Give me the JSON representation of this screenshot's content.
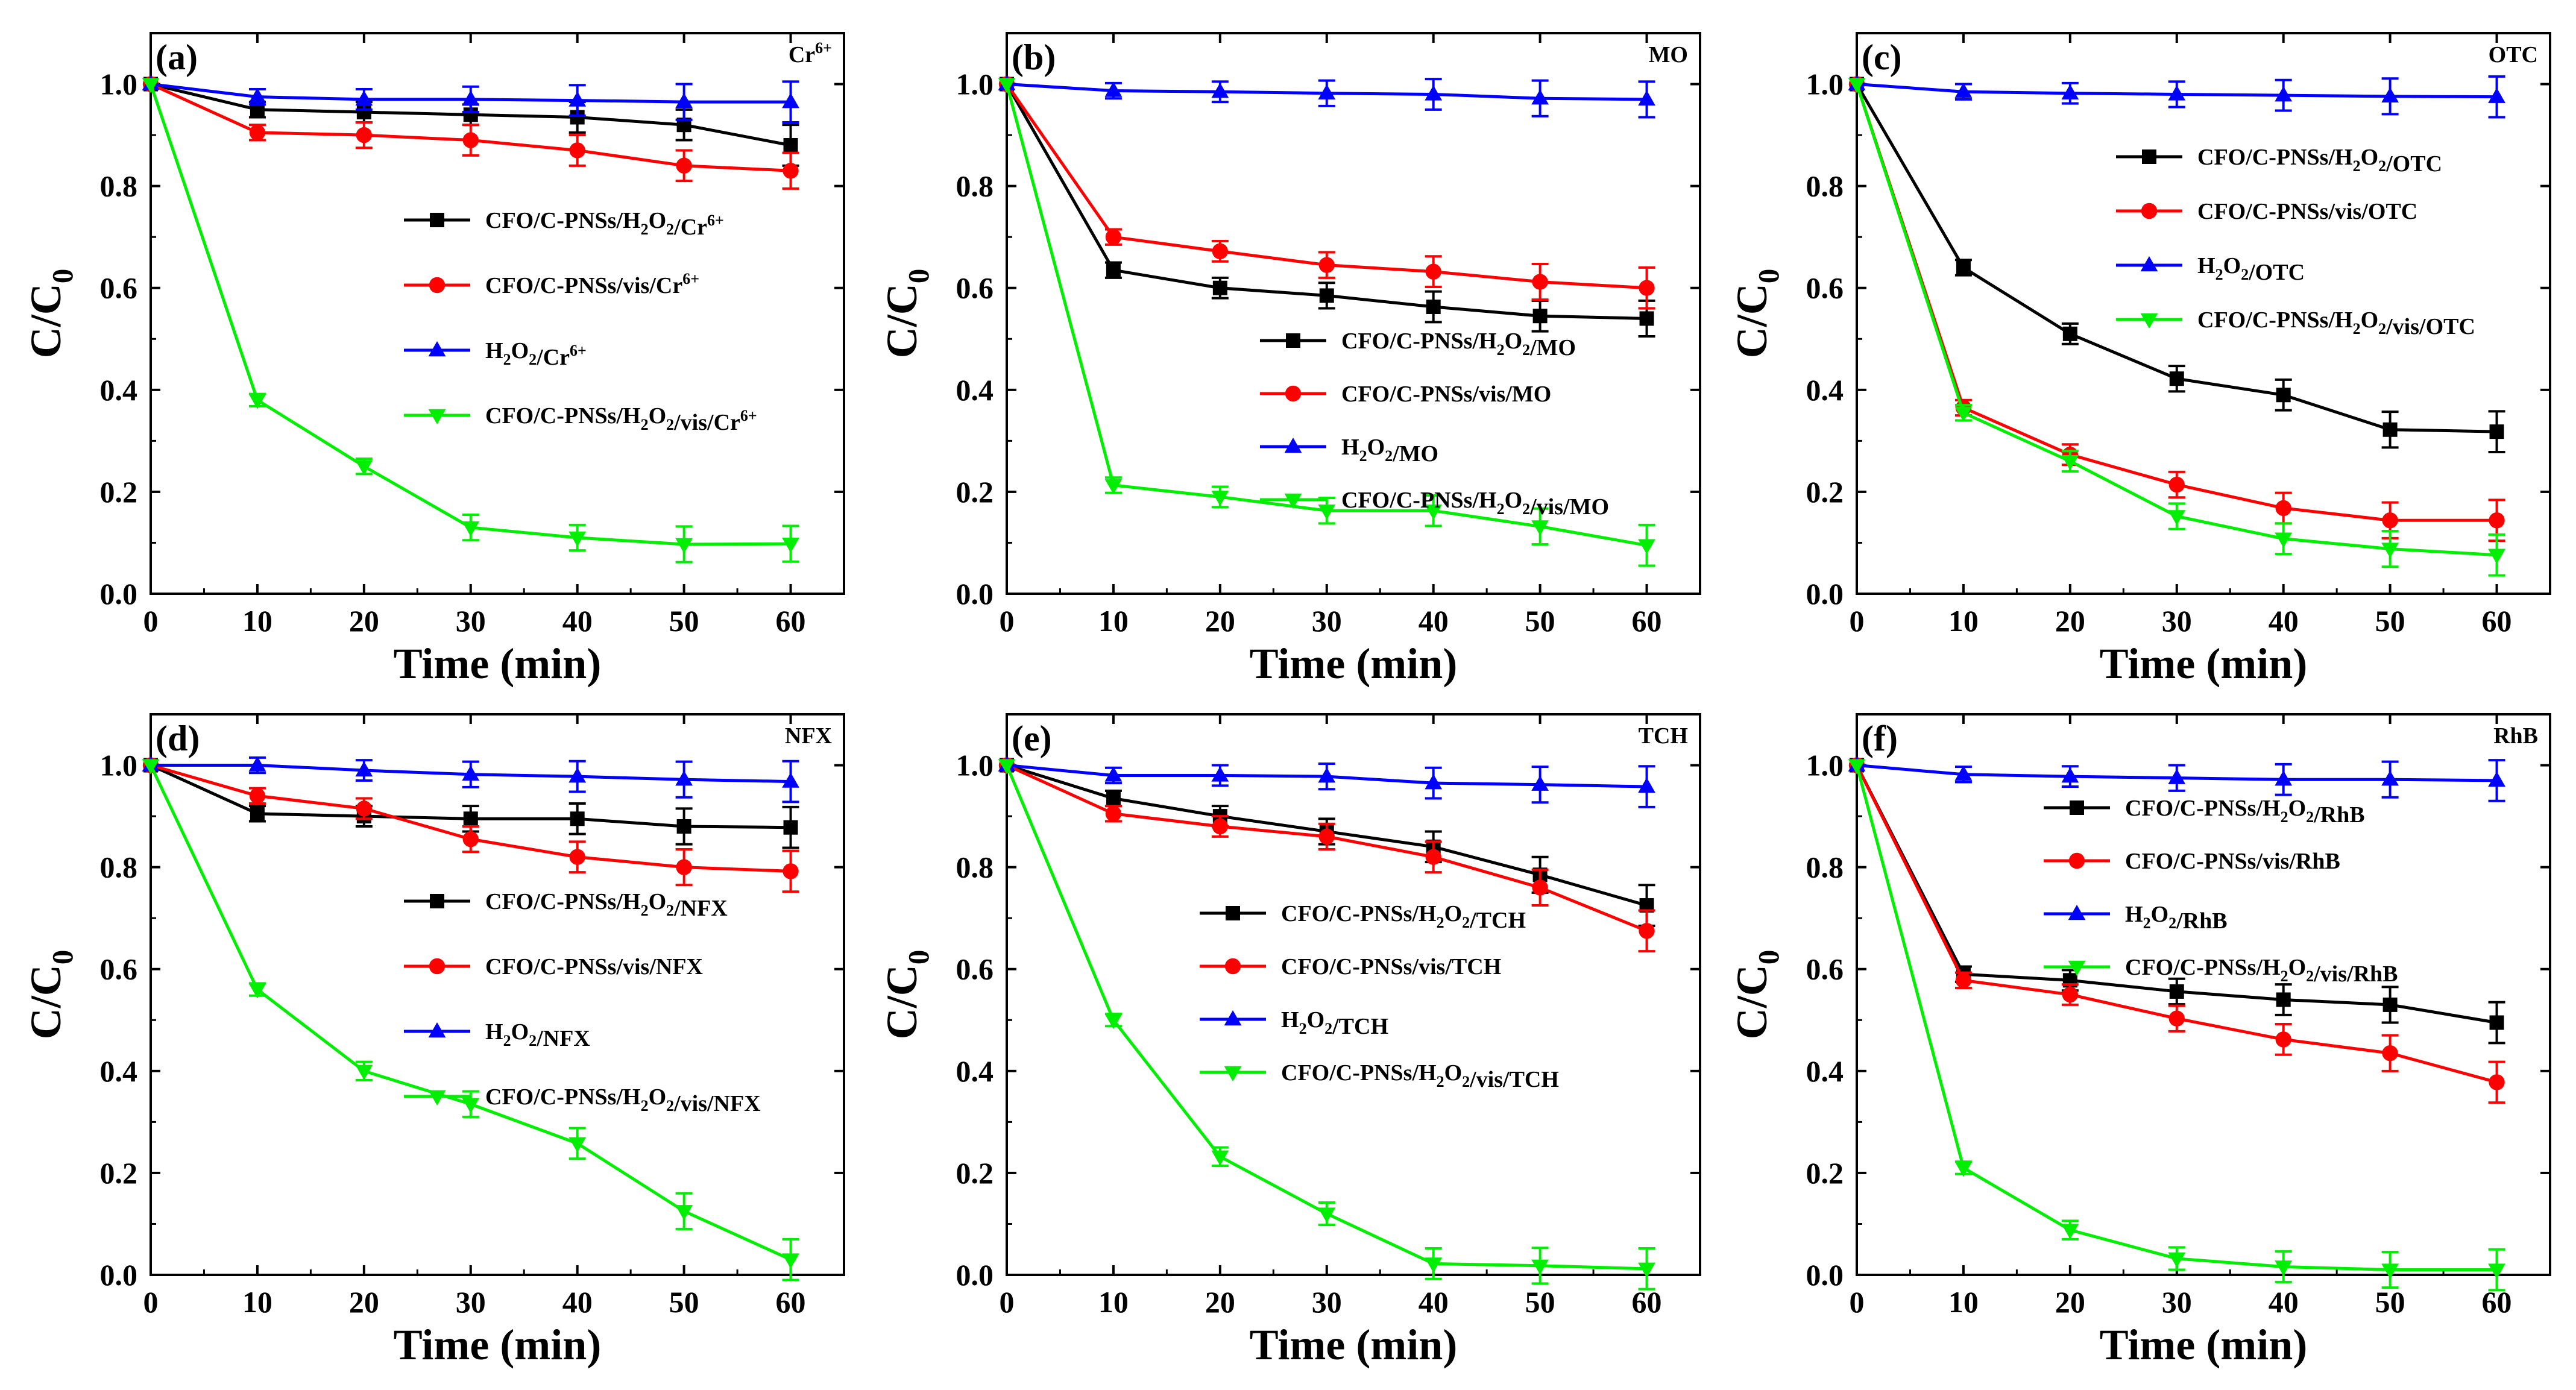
{
  "chart_data": [
    {
      "type": "line",
      "panel_label": "(a)",
      "pollutant": "Cr6+",
      "xlabel": "Time (min)",
      "ylabel": "C/C0",
      "xlim": [
        0,
        65
      ],
      "ylim": [
        0,
        1.1
      ],
      "xticks": [
        "0",
        "10",
        "20",
        "30",
        "40",
        "50",
        "60"
      ],
      "yticks": [
        "0.0",
        "0.2",
        "0.4",
        "0.6",
        "0.8",
        "1.0"
      ],
      "x": [
        0,
        10,
        20,
        30,
        40,
        50,
        60
      ],
      "legend_position": "middle-right",
      "series": [
        {
          "name": "CFO/C-PNSs/H2O2/Cr6+",
          "color": "#000000",
          "marker": "square",
          "values": [
            1.0,
            0.95,
            0.945,
            0.94,
            0.935,
            0.92,
            0.88
          ],
          "errors": [
            0,
            0.015,
            0.02,
            0.02,
            0.03,
            0.03,
            0.04
          ]
        },
        {
          "name": "CFO/C-PNSs/vis/Cr6+",
          "color": "#ff0000",
          "marker": "circle",
          "values": [
            1.0,
            0.905,
            0.9,
            0.89,
            0.87,
            0.84,
            0.83
          ],
          "errors": [
            0,
            0.015,
            0.025,
            0.03,
            0.03,
            0.03,
            0.035
          ]
        },
        {
          "name": "H2O2/Cr6+",
          "color": "#0000ff",
          "marker": "triangle-up",
          "values": [
            1.0,
            0.975,
            0.97,
            0.97,
            0.968,
            0.965,
            0.965
          ],
          "errors": [
            0,
            0.015,
            0.02,
            0.025,
            0.03,
            0.035,
            0.04
          ]
        },
        {
          "name": "CFO/C-PNSs/H2O2/vis/Cr6+",
          "color": "#00ee00",
          "marker": "triangle-down",
          "values": [
            1.0,
            0.38,
            0.25,
            0.13,
            0.11,
            0.097,
            0.098
          ],
          "errors": [
            0,
            0.012,
            0.015,
            0.025,
            0.025,
            0.035,
            0.035
          ]
        }
      ]
    },
    {
      "type": "line",
      "panel_label": "(b)",
      "pollutant": "MO",
      "xlabel": "Time (min)",
      "ylabel": "C/C0",
      "xlim": [
        0,
        65
      ],
      "ylim": [
        0,
        1.1
      ],
      "xticks": [
        "0",
        "10",
        "20",
        "30",
        "40",
        "50",
        "60"
      ],
      "yticks": [
        "0.0",
        "0.2",
        "0.4",
        "0.6",
        "0.8",
        "1.0"
      ],
      "x": [
        0,
        10,
        20,
        30,
        40,
        50,
        60
      ],
      "legend_position": "middle-right",
      "series": [
        {
          "name": "CFO/C-PNSs/H2O2/MO",
          "color": "#000000",
          "marker": "square",
          "values": [
            1.0,
            0.635,
            0.6,
            0.585,
            0.563,
            0.545,
            0.54
          ],
          "errors": [
            0,
            0.015,
            0.02,
            0.025,
            0.03,
            0.03,
            0.035
          ]
        },
        {
          "name": "CFO/C-PNSs/vis/MO",
          "color": "#ff0000",
          "marker": "circle",
          "values": [
            1.0,
            0.7,
            0.672,
            0.645,
            0.632,
            0.612,
            0.6
          ],
          "errors": [
            0,
            0.015,
            0.02,
            0.025,
            0.03,
            0.035,
            0.04
          ]
        },
        {
          "name": "H2O2/MO",
          "color": "#0000ff",
          "marker": "triangle-up",
          "values": [
            1.0,
            0.987,
            0.985,
            0.982,
            0.98,
            0.972,
            0.97
          ],
          "errors": [
            0,
            0.015,
            0.02,
            0.025,
            0.03,
            0.035,
            0.035
          ]
        },
        {
          "name": "CFO/C-PNSs/H2O2/vis/MO",
          "color": "#00ee00",
          "marker": "triangle-down",
          "values": [
            1.0,
            0.213,
            0.19,
            0.163,
            0.163,
            0.132,
            0.095
          ],
          "errors": [
            0,
            0.015,
            0.02,
            0.025,
            0.03,
            0.035,
            0.04
          ]
        }
      ]
    },
    {
      "type": "line",
      "panel_label": "(c)",
      "pollutant": "OTC",
      "xlabel": "Time (min)",
      "ylabel": "C/C0",
      "xlim": [
        0,
        65
      ],
      "ylim": [
        0,
        1.1
      ],
      "xticks": [
        "0",
        "10",
        "20",
        "30",
        "40",
        "50",
        "60"
      ],
      "yticks": [
        "0.0",
        "0.2",
        "0.4",
        "0.6",
        "0.8",
        "1.0"
      ],
      "x": [
        0,
        10,
        20,
        30,
        40,
        50,
        60
      ],
      "legend_position": "upper-right",
      "series": [
        {
          "name": "CFO/C-PNSs/H2O2/OTC",
          "color": "#000000",
          "marker": "square",
          "values": [
            1.0,
            0.64,
            0.51,
            0.422,
            0.39,
            0.322,
            0.318
          ],
          "errors": [
            0,
            0.015,
            0.02,
            0.025,
            0.03,
            0.035,
            0.04
          ]
        },
        {
          "name": "CFO/C-PNSs/vis/OTC",
          "color": "#ff0000",
          "marker": "circle",
          "values": [
            1.0,
            0.365,
            0.273,
            0.214,
            0.168,
            0.144,
            0.144
          ],
          "errors": [
            0,
            0.015,
            0.02,
            0.025,
            0.03,
            0.035,
            0.04
          ]
        },
        {
          "name": "H2O2/OTC",
          "color": "#0000ff",
          "marker": "triangle-up",
          "values": [
            1.0,
            0.985,
            0.982,
            0.98,
            0.978,
            0.976,
            0.975
          ],
          "errors": [
            0,
            0.015,
            0.02,
            0.025,
            0.03,
            0.035,
            0.04
          ]
        },
        {
          "name": "CFO/C-PNSs/H2O2/vis/OTC",
          "color": "#00ee00",
          "marker": "triangle-down",
          "values": [
            1.0,
            0.355,
            0.26,
            0.152,
            0.108,
            0.088,
            0.076
          ],
          "errors": [
            0,
            0.015,
            0.02,
            0.025,
            0.03,
            0.035,
            0.04
          ]
        }
      ]
    },
    {
      "type": "line",
      "panel_label": "(d)",
      "pollutant": "NFX",
      "xlabel": "Time (min)",
      "ylabel": "C/C0",
      "xlim": [
        0,
        65
      ],
      "ylim": [
        0,
        1.1
      ],
      "xticks": [
        "0",
        "10",
        "20",
        "30",
        "40",
        "50",
        "60"
      ],
      "yticks": [
        "0.0",
        "0.2",
        "0.4",
        "0.6",
        "0.8",
        "1.0"
      ],
      "x": [
        0,
        10,
        20,
        30,
        40,
        50,
        60
      ],
      "legend_position": "middle-right",
      "series": [
        {
          "name": "CFO/C-PNSs/H2O2/NFX",
          "color": "#000000",
          "marker": "square",
          "values": [
            1.0,
            0.905,
            0.9,
            0.895,
            0.895,
            0.88,
            0.878
          ],
          "errors": [
            0,
            0.015,
            0.02,
            0.025,
            0.03,
            0.035,
            0.04
          ]
        },
        {
          "name": "CFO/C-PNSs/vis/NFX",
          "color": "#ff0000",
          "marker": "circle",
          "values": [
            1.0,
            0.94,
            0.915,
            0.855,
            0.82,
            0.8,
            0.792
          ],
          "errors": [
            0,
            0.015,
            0.02,
            0.025,
            0.03,
            0.035,
            0.04
          ]
        },
        {
          "name": "H2O2/NFX",
          "color": "#0000ff",
          "marker": "triangle-up",
          "values": [
            1.0,
            1.0,
            0.99,
            0.982,
            0.978,
            0.972,
            0.968
          ],
          "errors": [
            0,
            0.015,
            0.02,
            0.025,
            0.03,
            0.035,
            0.04
          ]
        },
        {
          "name": "CFO/C-PNSs/H2O2/vis/NFX",
          "color": "#00ee00",
          "marker": "triangle-down",
          "values": [
            1.0,
            0.56,
            0.4,
            0.335,
            0.258,
            0.125,
            0.03
          ],
          "errors": [
            0,
            0.012,
            0.018,
            0.025,
            0.03,
            0.035,
            0.04
          ]
        }
      ]
    },
    {
      "type": "line",
      "panel_label": "(e)",
      "pollutant": "TCH",
      "xlabel": "Time (min)",
      "ylabel": "C/C0",
      "xlim": [
        0,
        65
      ],
      "ylim": [
        0,
        1.1
      ],
      "xticks": [
        "0",
        "10",
        "20",
        "30",
        "40",
        "50",
        "60"
      ],
      "yticks": [
        "0.0",
        "0.2",
        "0.4",
        "0.6",
        "0.8",
        "1.0"
      ],
      "x": [
        0,
        10,
        20,
        30,
        40,
        50,
        60
      ],
      "legend_position": "middle-right",
      "series": [
        {
          "name": "CFO/C-PNSs/H2O2/TCH",
          "color": "#000000",
          "marker": "square",
          "values": [
            1.0,
            0.935,
            0.9,
            0.87,
            0.84,
            0.785,
            0.725
          ],
          "errors": [
            0,
            0.015,
            0.02,
            0.025,
            0.03,
            0.035,
            0.04
          ]
        },
        {
          "name": "CFO/C-PNSs/vis/TCH",
          "color": "#ff0000",
          "marker": "circle",
          "values": [
            1.0,
            0.905,
            0.88,
            0.86,
            0.82,
            0.76,
            0.675
          ],
          "errors": [
            0,
            0.015,
            0.02,
            0.025,
            0.03,
            0.035,
            0.04
          ]
        },
        {
          "name": "H2O2/TCH",
          "color": "#0000ff",
          "marker": "triangle-up",
          "values": [
            1.0,
            0.98,
            0.98,
            0.978,
            0.965,
            0.962,
            0.958
          ],
          "errors": [
            0,
            0.015,
            0.02,
            0.025,
            0.03,
            0.035,
            0.04
          ]
        },
        {
          "name": "CFO/C-PNSs/H2O2/vis/TCH",
          "color": "#00ee00",
          "marker": "triangle-down",
          "values": [
            1.0,
            0.5,
            0.232,
            0.12,
            0.022,
            0.018,
            0.012
          ],
          "errors": [
            0,
            0.012,
            0.018,
            0.022,
            0.03,
            0.035,
            0.04
          ]
        }
      ]
    },
    {
      "type": "line",
      "panel_label": "(f)",
      "pollutant": "RhB",
      "xlabel": "Time (min)",
      "ylabel": "C/C0",
      "xlim": [
        0,
        65
      ],
      "ylim": [
        0,
        1.1
      ],
      "xticks": [
        "0",
        "10",
        "20",
        "30",
        "40",
        "50",
        "60"
      ],
      "yticks": [
        "0.0",
        "0.2",
        "0.4",
        "0.6",
        "0.8",
        "1.0"
      ],
      "x": [
        0,
        10,
        20,
        30,
        40,
        50,
        60
      ],
      "legend_position": "upper-right",
      "series": [
        {
          "name": "CFO/C-PNSs/H2O2/RhB",
          "color": "#000000",
          "marker": "square",
          "values": [
            1.0,
            0.59,
            0.578,
            0.556,
            0.54,
            0.53,
            0.495
          ],
          "errors": [
            0,
            0.015,
            0.02,
            0.025,
            0.03,
            0.035,
            0.04
          ]
        },
        {
          "name": "CFO/C-PNSs/vis/RhB",
          "color": "#ff0000",
          "marker": "circle",
          "values": [
            1.0,
            0.578,
            0.55,
            0.503,
            0.462,
            0.435,
            0.378
          ],
          "errors": [
            0,
            0.015,
            0.02,
            0.025,
            0.03,
            0.035,
            0.04
          ]
        },
        {
          "name": "H2O2/RhB",
          "color": "#0000ff",
          "marker": "triangle-up",
          "values": [
            1.0,
            0.982,
            0.978,
            0.975,
            0.972,
            0.972,
            0.97
          ],
          "errors": [
            0,
            0.015,
            0.02,
            0.025,
            0.03,
            0.035,
            0.04
          ]
        },
        {
          "name": "CFO/C-PNSs/H2O2/vis/RhB",
          "color": "#00ee00",
          "marker": "triangle-down",
          "values": [
            1.0,
            0.21,
            0.088,
            0.032,
            0.016,
            0.01,
            0.01
          ],
          "errors": [
            0,
            0.012,
            0.018,
            0.022,
            0.03,
            0.035,
            0.04
          ]
        }
      ]
    }
  ]
}
